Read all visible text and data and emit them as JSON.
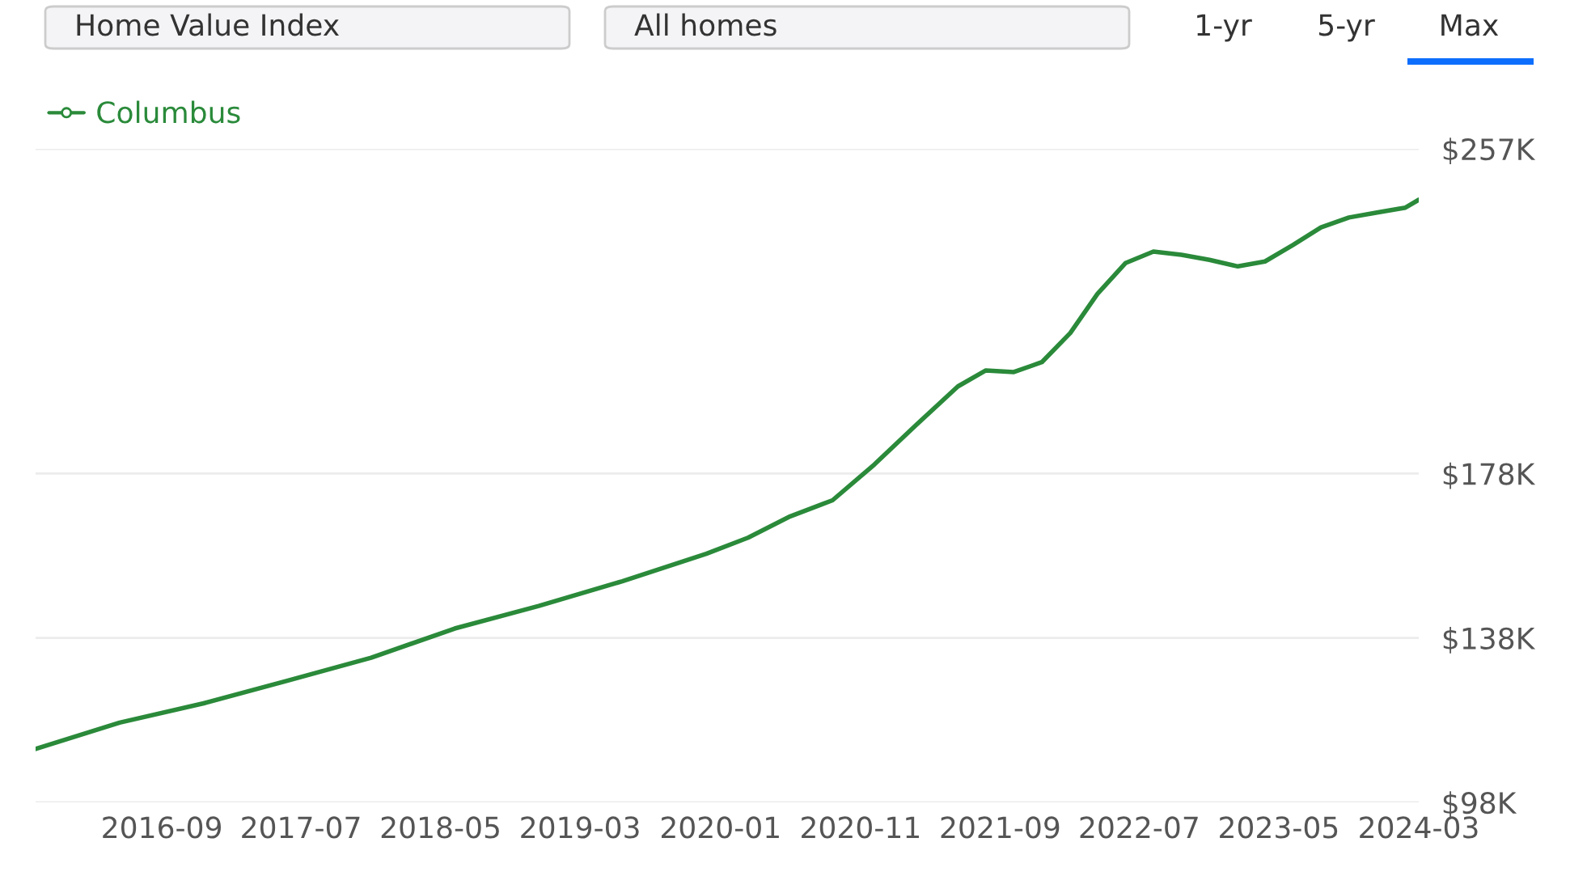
{
  "chart_data": {
    "type": "line",
    "annotations": [
      "Home Value Index",
      "All homes",
      "1-yr",
      "5-yr",
      "Max"
    ],
    "x": [
      "2015-12",
      "2016-06",
      "2016-12",
      "2017-06",
      "2017-12",
      "2018-06",
      "2018-12",
      "2019-06",
      "2019-12",
      "2020-03",
      "2020-06",
      "2020-09",
      "2020-12",
      "2021-03",
      "2021-06",
      "2021-08",
      "2021-10",
      "2021-12",
      "2022-02",
      "2022-04",
      "2022-06",
      "2022-08",
      "2022-10",
      "2022-12",
      "2023-02",
      "2023-04",
      "2023-06",
      "2023-08",
      "2023-10",
      "2023-12",
      "2024-02",
      "2024-03"
    ],
    "series": [
      {
        "name": "Columbus",
        "color": "#2a8a3a",
        "values": [
          111.0,
          117.4,
          122.1,
          127.6,
          133.2,
          140.3,
          145.8,
          151.8,
          158.5,
          162.4,
          167.6,
          171.5,
          180.2,
          189.7,
          199.2,
          203.1,
          202.7,
          205.1,
          212.2,
          221.7,
          229.2,
          232.0,
          231.2,
          230.0,
          228.4,
          229.6,
          233.6,
          237.9,
          240.3,
          241.5,
          242.7,
          244.6
        ]
      }
    ],
    "xlim": [
      "2015-12",
      "2024-03"
    ],
    "xticks": [
      "2016-09",
      "2017-07",
      "2018-05",
      "2019-03",
      "2020-01",
      "2020-11",
      "2021-09",
      "2022-07",
      "2023-05",
      "2024-03"
    ],
    "ylim": [
      98,
      257
    ],
    "yticks": [
      {
        "value": 98,
        "label": "$98K"
      },
      {
        "value": 138,
        "label": "$138K"
      },
      {
        "value": 178,
        "label": "$178K"
      },
      {
        "value": 257,
        "label": "$257K"
      }
    ],
    "grid": "y",
    "legend": "top left",
    "marker": "none",
    "line_style": "solid"
  }
}
